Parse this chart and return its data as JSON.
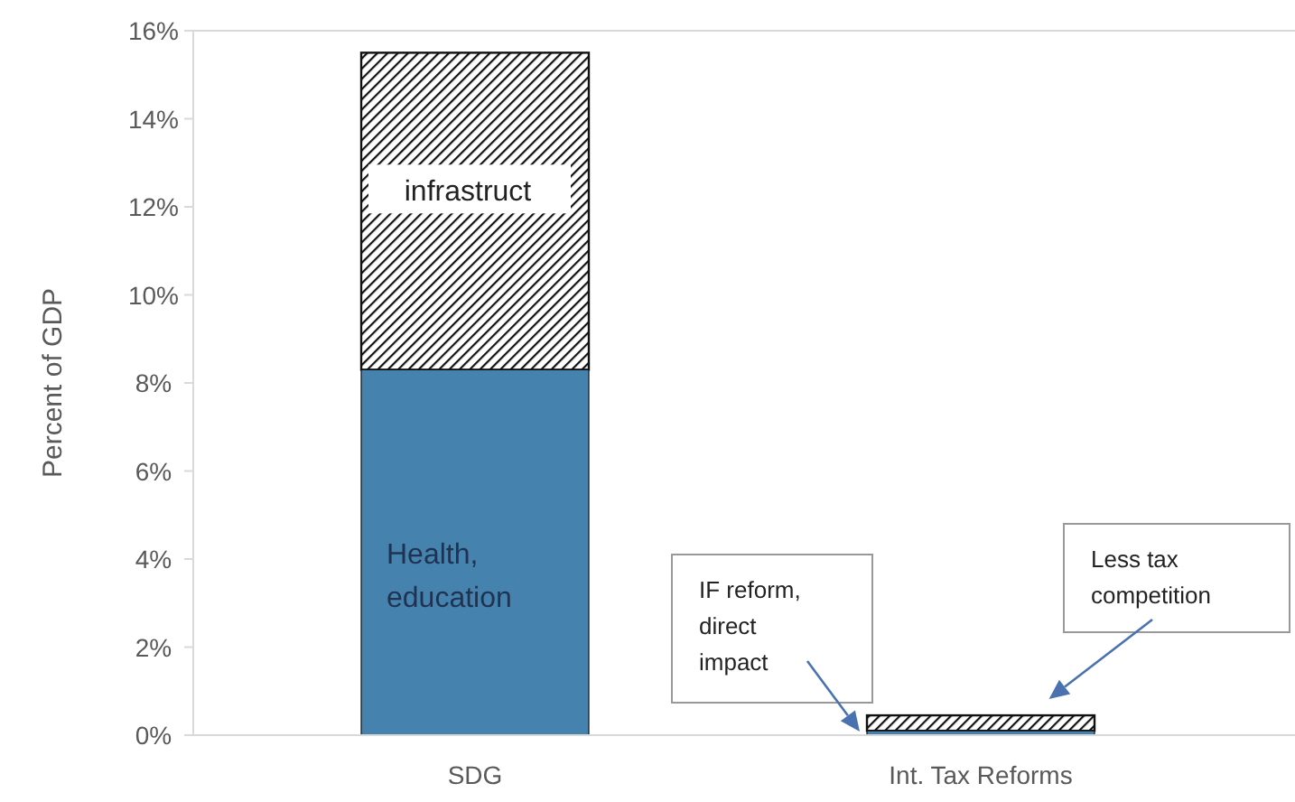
{
  "chart_data": {
    "type": "bar",
    "stacked": true,
    "ylabel": "Percent of GDP",
    "categories": [
      "SDG",
      "Int. Tax Reforms"
    ],
    "series": [
      {
        "name": "Health, education",
        "color": "#4682ae",
        "values": [
          8.3,
          0.1
        ]
      },
      {
        "name": "infrastruct",
        "color": "#111111",
        "values": [
          7.2,
          0.35
        ]
      }
    ],
    "ylim": [
      0,
      16
    ],
    "yticks": [
      {
        "value": 0,
        "label": "0%"
      },
      {
        "value": 2,
        "label": "2%"
      },
      {
        "value": 4,
        "label": "4%"
      },
      {
        "value": 6,
        "label": "6%"
      },
      {
        "value": 8,
        "label": "8%"
      },
      {
        "value": 10,
        "label": "10%"
      },
      {
        "value": 12,
        "label": "12%"
      },
      {
        "value": 14,
        "label": "14%"
      },
      {
        "value": 16,
        "label": "16%"
      }
    ],
    "grid": false,
    "legend": false,
    "annotations": [
      "IF reform, direct impact",
      "Less tax competition"
    ]
  }
}
